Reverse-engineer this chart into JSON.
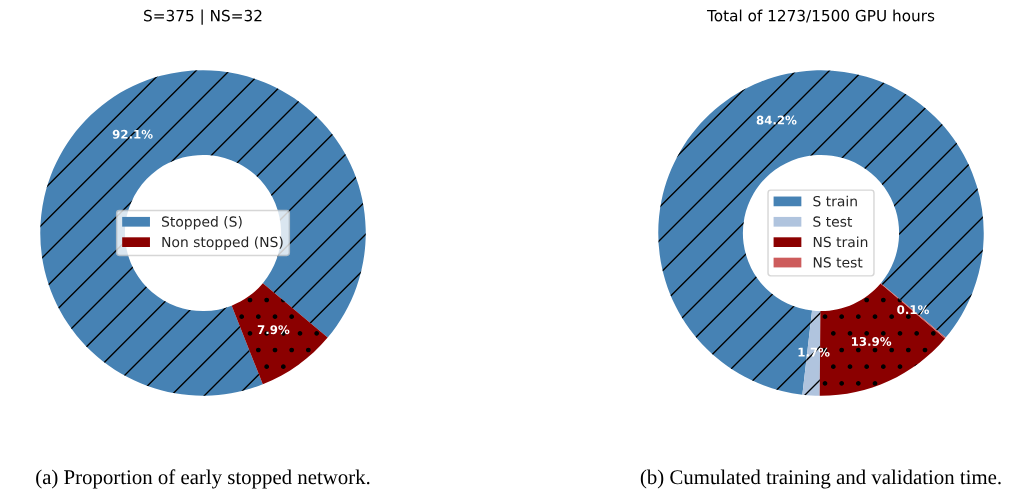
{
  "chart_data": [
    {
      "type": "donut",
      "title": "S=375 | NS=32",
      "categories": [
        "Stopped (S)",
        "Non stopped (NS)"
      ],
      "values": [
        92.1,
        7.9
      ],
      "colors": [
        "#4682b4",
        "#8b0000"
      ],
      "value_labels": [
        "92.1%",
        "7.9%"
      ],
      "legend": "center",
      "annotations": [
        "(a) Proportion of early stopped network."
      ]
    },
    {
      "type": "donut",
      "title": "Total of 1273/1500 GPU hours",
      "categories": [
        "S train",
        "S test",
        "NS train",
        "NS test"
      ],
      "values": [
        84.2,
        1.7,
        13.9,
        0.1
      ],
      "colors": [
        "#4682b4",
        "#b0c4de",
        "#8b0000",
        "#cd5c5c"
      ],
      "value_labels": [
        "84.2%",
        "1.7%",
        "13.9%",
        "0.1%"
      ],
      "legend": "center",
      "annotations": [
        "(b) Cumulated training and validation time."
      ]
    }
  ]
}
